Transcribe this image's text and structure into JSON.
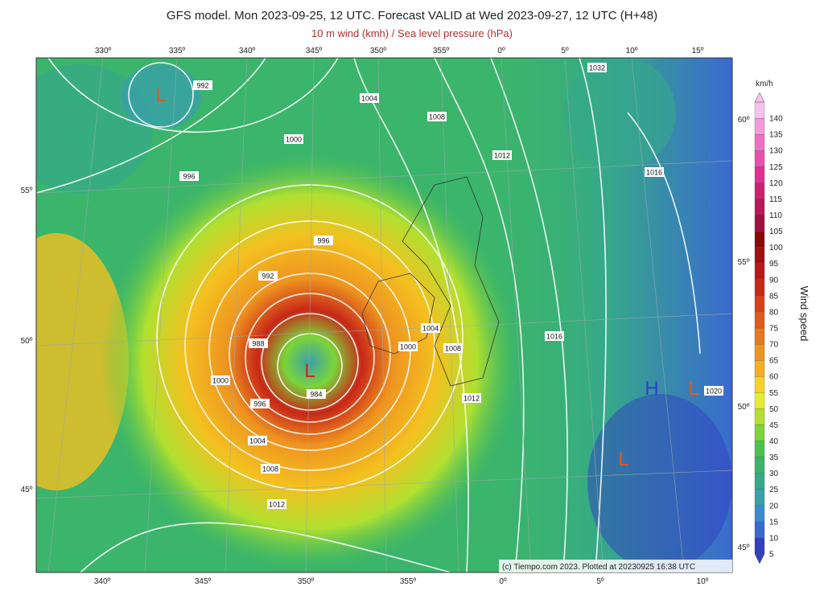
{
  "header": {
    "title": "GFS model. Mon 2023-09-25, 12 UTC. Forecast VALID at Wed 2023-09-27, 12 UTC (H+48)",
    "subtitle": "10 m wind (kmh) / Sea level pressure (hPa)"
  },
  "map": {
    "top_longitudes": [
      "330º",
      "335º",
      "340º",
      "345º",
      "350º",
      "355º",
      "0º",
      "5º",
      "10º",
      "15º"
    ],
    "bottom_longitudes": [
      "340º",
      "345º",
      "350º",
      "355º",
      "0º",
      "5º",
      "10º"
    ],
    "left_latitudes": [
      "55º",
      "50º",
      "45º"
    ],
    "right_latitudes": [
      "60º",
      "55º",
      "50º",
      "45º"
    ],
    "isobar_labels": [
      "992",
      "1004",
      "1008",
      "1000",
      "1012",
      "996",
      "1016",
      "996",
      "992",
      "1004",
      "1008",
      "1000",
      "988",
      "1000",
      "984",
      "1012",
      "996",
      "1020",
      "1004",
      "1016",
      "1008",
      "1012",
      "1032"
    ],
    "pressure_centers": [
      "L",
      "L",
      "H",
      "L",
      "L"
    ],
    "credit": "(c) Tiempo.com 2023. Plotted at 20230925 16:38 UTC"
  },
  "colorbar": {
    "unit": "km/h",
    "label": "Wind speed",
    "levels": [
      {
        "value": 5,
        "color": "#3040c0"
      },
      {
        "value": 10,
        "color": "#3a6ad0"
      },
      {
        "value": 15,
        "color": "#3b8ccc"
      },
      {
        "value": 20,
        "color": "#3aa0a8"
      },
      {
        "value": 25,
        "color": "#36a88a"
      },
      {
        "value": 30,
        "color": "#3bb46c"
      },
      {
        "value": 35,
        "color": "#4cc24c"
      },
      {
        "value": 40,
        "color": "#7bd43a"
      },
      {
        "value": 45,
        "color": "#b0e030"
      },
      {
        "value": 50,
        "color": "#e8ec30"
      },
      {
        "value": 55,
        "color": "#f8d028"
      },
      {
        "value": 60,
        "color": "#f4b020"
      },
      {
        "value": 65,
        "color": "#ee9420"
      },
      {
        "value": 70,
        "color": "#e87820"
      },
      {
        "value": 75,
        "color": "#e05a1c"
      },
      {
        "value": 80,
        "color": "#d8401a"
      },
      {
        "value": 85,
        "color": "#c82818"
      },
      {
        "value": 90,
        "color": "#b81818"
      },
      {
        "value": 95,
        "color": "#a01010"
      },
      {
        "value": 100,
        "color": "#880808"
      },
      {
        "value": 105,
        "color": "#a01040"
      },
      {
        "value": 110,
        "color": "#b81858"
      },
      {
        "value": 115,
        "color": "#d02070"
      },
      {
        "value": 120,
        "color": "#e03090"
      },
      {
        "value": 125,
        "color": "#e850b0"
      },
      {
        "value": 130,
        "color": "#f070c8"
      },
      {
        "value": 135,
        "color": "#f498dc"
      },
      {
        "value": 140,
        "color": "#f8c0ec"
      }
    ]
  }
}
